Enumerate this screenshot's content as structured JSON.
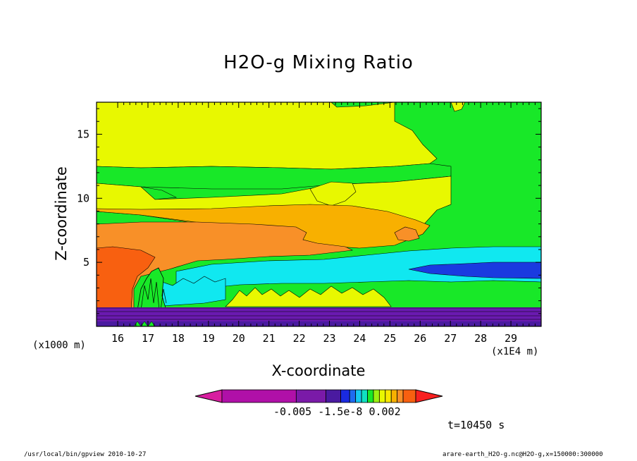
{
  "chart_data": {
    "type": "heatmap",
    "subtype": "filled-contour",
    "title": "H2O-g Mixing Ratio",
    "xlabel": "X-coordinate",
    "ylabel": "Z-coordinate",
    "x_unit_label": "(x1E4 m)",
    "z_unit_label": "(x1000 m)",
    "xlim": [
      15.3,
      30.0
    ],
    "ylim": [
      0,
      17.5
    ],
    "x_ticks": [
      "16",
      "17",
      "18",
      "19",
      "20",
      "21",
      "22",
      "23",
      "24",
      "25",
      "26",
      "27",
      "28",
      "29"
    ],
    "x_tick_values": [
      16,
      17,
      18,
      19,
      20,
      21,
      22,
      23,
      24,
      25,
      26,
      27,
      28,
      29
    ],
    "y_ticks": [
      "5",
      "10",
      "15"
    ],
    "y_tick_values": [
      5,
      10,
      15
    ],
    "colorbar": {
      "labels_text": "-0.005 -1.5e-8  0.002",
      "colors": [
        "#d81ea0",
        "#b010a8",
        "#7a1aa8",
        "#4a1aa0",
        "#1a2ae0",
        "#1e6cf0",
        "#16c8f0",
        "#10e0c0",
        "#18e828",
        "#9cf010",
        "#e8f800",
        "#f8e800",
        "#f8b000",
        "#f89028",
        "#f86010",
        "#f82020"
      ],
      "orientation": "horizontal",
      "extended_ends": true
    },
    "grid": false,
    "regions": [
      {
        "name": "upper-yellow",
        "color": "#e8f800"
      },
      {
        "name": "green-band",
        "color": "#18e828"
      },
      {
        "name": "orange-core",
        "color": "#f89028"
      },
      {
        "name": "cyan-tongue",
        "color": "#10e8f0"
      },
      {
        "name": "blue-pocket",
        "color": "#1a3ae0"
      },
      {
        "name": "purple-surface-layer",
        "color": "#6a1ab0"
      }
    ]
  },
  "time_label": "t=10450 s",
  "footer_left": "/usr/local/bin/gpview  2010-10-27",
  "footer_right": "arare-earth_H2O-g.nc@H2O-g,x=150000:300000"
}
